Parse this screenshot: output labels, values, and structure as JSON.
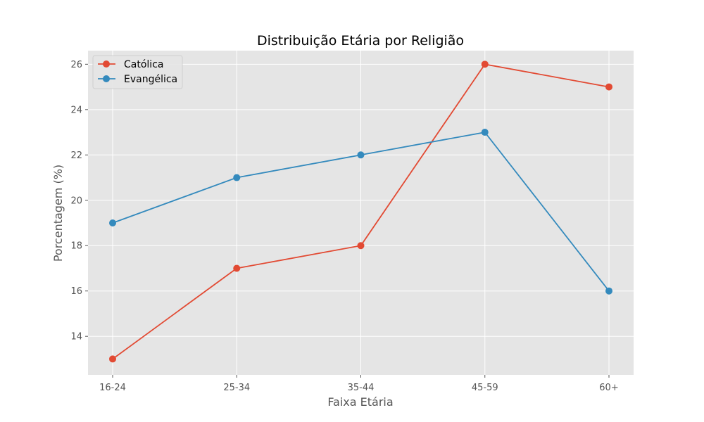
{
  "chart_data": {
    "type": "line",
    "title": "Distribuição Etária por Religião",
    "xlabel": "Faixa Etária",
    "ylabel": "Porcentagem (%)",
    "categories": [
      "16-24",
      "25-34",
      "35-44",
      "45-59",
      "60+"
    ],
    "ylim": [
      12.3,
      26.6
    ],
    "yticks": [
      14,
      16,
      18,
      20,
      22,
      24,
      26
    ],
    "grid": true,
    "legend_position": "top-left",
    "series": [
      {
        "name": "Católica",
        "color": "#E24A33",
        "values": [
          13,
          17,
          18,
          26,
          25
        ]
      },
      {
        "name": "Evangélica",
        "color": "#348ABD",
        "values": [
          19,
          21,
          22,
          23,
          16
        ]
      }
    ]
  }
}
